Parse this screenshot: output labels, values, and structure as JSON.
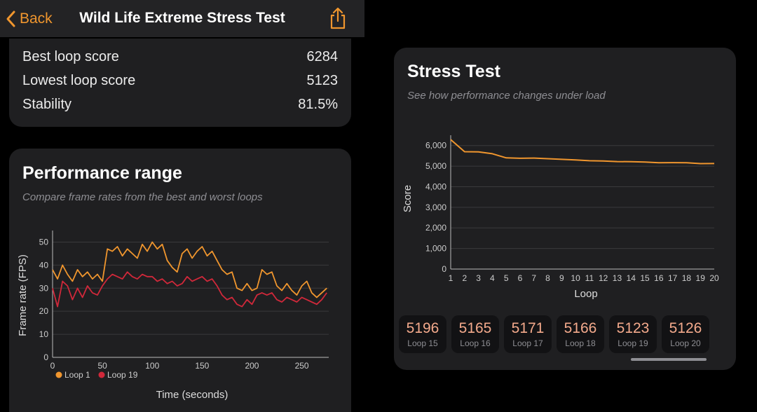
{
  "nav": {
    "back_label": "Back",
    "title": "Wild Life Extreme Stress Test"
  },
  "summary": {
    "rows": [
      {
        "label": "Best loop score",
        "value": "6284"
      },
      {
        "label": "Lowest loop score",
        "value": "5123"
      },
      {
        "label": "Stability",
        "value": "81.5%"
      }
    ]
  },
  "performance_range": {
    "title": "Performance range",
    "subtitle": "Compare frame rates from the best and worst loops"
  },
  "stress_test": {
    "title": "Stress Test",
    "subtitle": "See how performance changes under load",
    "tiles": [
      {
        "score": "5196",
        "loop": "Loop 15"
      },
      {
        "score": "5165",
        "loop": "Loop 16"
      },
      {
        "score": "5171",
        "loop": "Loop 17"
      },
      {
        "score": "5166",
        "loop": "Loop 18"
      },
      {
        "score": "5123",
        "loop": "Loop 19"
      },
      {
        "score": "5126",
        "loop": "Loop 20"
      }
    ]
  },
  "colors": {
    "accent": "#f0962e",
    "loop1": "#f0962e",
    "loop19": "#d0283a",
    "card": "#1f1f21",
    "grid": "#3a3a3c"
  },
  "chart_data": [
    {
      "type": "line",
      "title": "Performance range",
      "xlabel": "Time (seconds)",
      "ylabel": "Frame rate (FPS)",
      "xlim": [
        0,
        277
      ],
      "ylim": [
        0,
        55
      ],
      "xticks": [
        0,
        50,
        100,
        150,
        200,
        250
      ],
      "yticks": [
        0,
        10,
        20,
        30,
        40,
        50
      ],
      "legend": "bottom-left",
      "series": [
        {
          "name": "Loop 1",
          "color": "#f0962e",
          "x": [
            0,
            5,
            10,
            15,
            20,
            25,
            30,
            35,
            40,
            45,
            50,
            55,
            60,
            65,
            70,
            75,
            80,
            85,
            90,
            95,
            100,
            105,
            110,
            115,
            120,
            125,
            130,
            135,
            140,
            145,
            150,
            155,
            160,
            165,
            170,
            175,
            180,
            185,
            190,
            195,
            200,
            205,
            210,
            215,
            220,
            225,
            230,
            235,
            240,
            245,
            250,
            255,
            260,
            265,
            270,
            275
          ],
          "y": [
            38,
            34,
            40,
            36,
            33,
            38,
            35,
            37,
            34,
            36,
            33,
            47,
            46,
            48,
            44,
            47,
            45,
            43,
            49,
            46,
            50,
            47,
            49,
            42,
            39,
            37,
            45,
            47,
            43,
            46,
            48,
            44,
            46,
            42,
            38,
            36,
            37,
            30,
            29,
            32,
            29,
            30,
            38,
            36,
            37,
            31,
            29,
            32,
            29,
            27,
            31,
            33,
            28,
            26,
            28,
            30
          ]
        },
        {
          "name": "Loop 19",
          "color": "#d0283a",
          "x": [
            0,
            5,
            10,
            15,
            20,
            25,
            30,
            35,
            40,
            45,
            50,
            55,
            60,
            65,
            70,
            75,
            80,
            85,
            90,
            95,
            100,
            105,
            110,
            115,
            120,
            125,
            130,
            135,
            140,
            145,
            150,
            155,
            160,
            165,
            170,
            175,
            180,
            185,
            190,
            195,
            200,
            205,
            210,
            215,
            220,
            225,
            230,
            235,
            240,
            245,
            250,
            255,
            260,
            265,
            270,
            275
          ],
          "y": [
            30,
            22,
            33,
            31,
            25,
            30,
            26,
            31,
            28,
            27,
            31,
            34,
            36,
            35,
            34,
            37,
            35,
            34,
            36,
            35,
            35,
            33,
            34,
            32,
            33,
            31,
            32,
            35,
            33,
            34,
            35,
            33,
            34,
            31,
            27,
            25,
            26,
            23,
            22,
            25,
            23,
            27,
            28,
            27,
            28,
            25,
            24,
            26,
            25,
            24,
            26,
            25,
            24,
            23,
            25,
            28
          ]
        }
      ]
    },
    {
      "type": "line",
      "title": "Stress Test",
      "xlabel": "Loop",
      "ylabel": "Score",
      "xlim": [
        1,
        20
      ],
      "ylim": [
        0,
        6500
      ],
      "yticks": [
        0,
        1000,
        2000,
        3000,
        4000,
        5000,
        6000
      ],
      "ytick_labels": [
        "0",
        "1,000",
        "2,000",
        "3,000",
        "4,000",
        "5,000",
        "6,000"
      ],
      "xticks": [
        1,
        2,
        3,
        4,
        5,
        6,
        7,
        8,
        9,
        10,
        11,
        12,
        13,
        14,
        15,
        16,
        17,
        18,
        19,
        20
      ],
      "series": [
        {
          "name": "Score",
          "color": "#f0962e",
          "x": [
            1,
            2,
            3,
            4,
            5,
            6,
            7,
            8,
            9,
            10,
            11,
            12,
            13,
            14,
            15,
            16,
            17,
            18,
            19,
            20
          ],
          "y": [
            6284,
            5700,
            5690,
            5600,
            5400,
            5380,
            5390,
            5360,
            5330,
            5300,
            5260,
            5250,
            5220,
            5215,
            5196,
            5165,
            5171,
            5166,
            5123,
            5126
          ]
        }
      ]
    }
  ]
}
